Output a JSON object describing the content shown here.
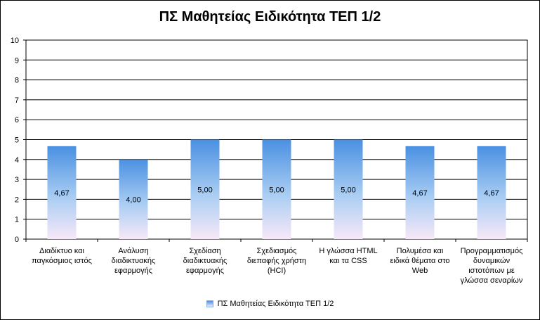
{
  "chart_data": {
    "type": "bar",
    "title": "ΠΣ Μαθητείας Ειδικότητα ΤΕΠ 1/2",
    "categories": [
      [
        "Διαδίκτυο και",
        "παγκόσμιος ιστός"
      ],
      [
        "Ανάλυση",
        "διαδικτυακής",
        "εφαρμογής"
      ],
      [
        "Σχεδίαση",
        "διαδικτυακής",
        "εφαρμογής"
      ],
      [
        "Σχεδιασμός",
        "διεπαφής χρήστη",
        "(HCI)"
      ],
      [
        "Η γλώσσα HTML",
        "και τα CSS"
      ],
      [
        "Πολυμέσα και",
        "ειδικά θέματα στο",
        "Web"
      ],
      [
        "Προγραμματισμός",
        "δυναμικών",
        "ιστοτόπων με",
        "γλώσσα σεναρίων"
      ]
    ],
    "series": [
      {
        "name": "ΠΣ Μαθητείας  Ειδικότητα ΤΕΠ 1/2",
        "values": [
          4.67,
          4.0,
          5.0,
          5.0,
          5.0,
          4.67,
          4.67
        ],
        "labels": [
          "4,67",
          "4,00",
          "5,00",
          "5,00",
          "5,00",
          "4,67",
          "4,67"
        ]
      }
    ],
    "ylim": [
      0,
      10
    ],
    "yticks": [
      "0",
      "1",
      "2",
      "3",
      "4",
      "5",
      "6",
      "7",
      "8",
      "9",
      "10"
    ],
    "grid": true,
    "legend": "bottom",
    "colors": {
      "bar_top": "#4a90e2",
      "bar_bottom": "#f7e8f8",
      "plot_bg": "#ffffff",
      "grid": "#000000"
    }
  }
}
